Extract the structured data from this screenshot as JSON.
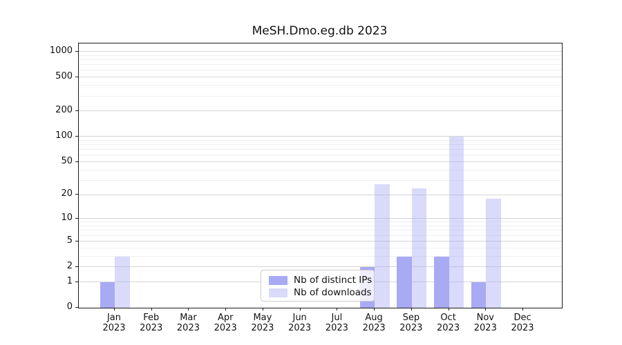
{
  "title": "MeSH.Dmo.eg.db 2023",
  "chart_data": {
    "type": "bar",
    "title": "MeSH.Dmo.eg.db 2023",
    "categories": [
      "Jan 2023",
      "Feb 2023",
      "Mar 2023",
      "Apr 2023",
      "May 2023",
      "Jun 2023",
      "Jul 2023",
      "Aug 2023",
      "Sep 2023",
      "Oct 2023",
      "Nov 2023",
      "Dec 2023"
    ],
    "months": [
      "Jan",
      "Feb",
      "Mar",
      "Apr",
      "May",
      "Jun",
      "Jul",
      "Aug",
      "Sep",
      "Oct",
      "Nov",
      "Dec"
    ],
    "year": "2023",
    "series": [
      {
        "name": "Nb of distinct IPs",
        "color": "#a8aaf4",
        "alpha": 1,
        "values": [
          1,
          0,
          0,
          0,
          0,
          0,
          0,
          2,
          3,
          3,
          1,
          0
        ]
      },
      {
        "name": "Nb of downloads",
        "color": "#a8aaf4",
        "alpha": 0.42,
        "values": [
          3,
          0,
          0,
          0,
          0,
          0,
          0,
          27,
          24,
          100,
          18,
          0
        ]
      }
    ],
    "xlabel": "",
    "ylabel": "",
    "yscale": "log1p",
    "ylim": [
      0,
      1250
    ],
    "ytick_values": [
      0,
      1,
      2,
      5,
      10,
      20,
      50,
      100,
      200,
      500,
      1000
    ],
    "ytick_labels": [
      "0",
      "1",
      "2",
      "5",
      "10",
      "20",
      "50",
      "100",
      "200",
      "500",
      "1000"
    ],
    "minor_gridline_values": [
      3,
      4,
      6,
      7,
      8,
      9,
      30,
      40,
      60,
      70,
      80,
      90,
      300,
      400,
      600,
      700,
      800,
      900
    ],
    "grid": true,
    "legend_position": "inside lower center"
  },
  "legend": {
    "items": [
      {
        "label": "Nb of distinct IPs"
      },
      {
        "label": "Nb of downloads"
      }
    ]
  },
  "colors": {
    "ips_bar": "#a8aaf4",
    "downloads_bar": "#dcdef9",
    "major_grid": "#d6d6d6",
    "minor_grid": "#efefef",
    "axis": "#1a1a1a",
    "background": "#ffffff"
  }
}
